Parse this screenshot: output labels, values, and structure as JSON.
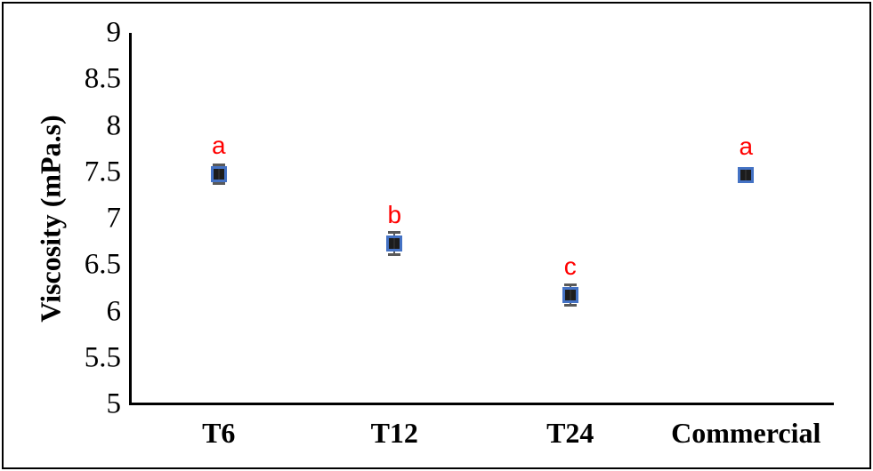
{
  "figure": {
    "background": "#ffffff",
    "frame_color": "#000000",
    "axis_color": "#000000"
  },
  "chart_data": {
    "type": "scatter",
    "title": "",
    "xlabel": "",
    "ylabel": "Viscosity (mPa.s)",
    "categories": [
      "T6",
      "T12",
      "T24",
      "Commercial"
    ],
    "series": [
      {
        "name": "Viscosity",
        "values": [
          7.48,
          6.73,
          6.18,
          7.47
        ],
        "errors": [
          0.1,
          0.12,
          0.11,
          0.02
        ],
        "point_labels": [
          "a",
          "b",
          "c",
          "a"
        ]
      }
    ],
    "ylim": [
      5,
      9
    ],
    "ytick_step": 0.5,
    "yticks": [
      9,
      8.5,
      8,
      7.5,
      7,
      6.5,
      6,
      5.5,
      5
    ],
    "grid": false,
    "legend": null,
    "marker_shape": "square",
    "marker_fill": "#1c1c1c",
    "marker_border": "#4472C4",
    "error_bar_color": "#595959",
    "point_label_color": "#FF0000"
  }
}
